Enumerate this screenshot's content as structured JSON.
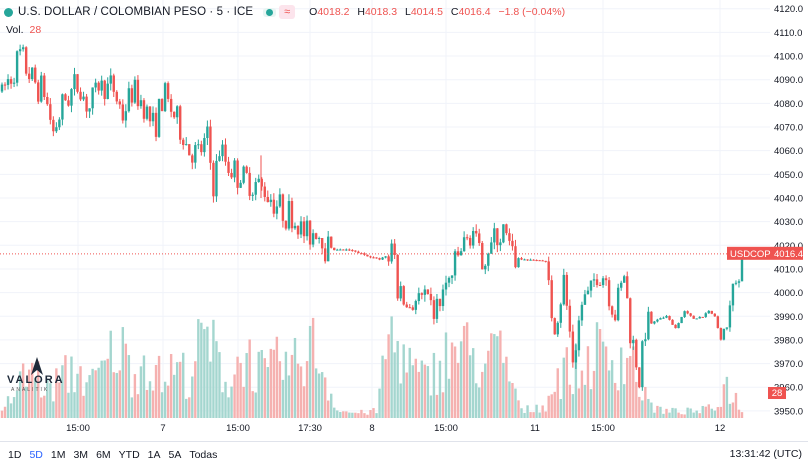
{
  "header": {
    "symbol_title": "U.S. DOLLAR / COLOMBIAN PESO · 5 · ICE",
    "o_label": "O",
    "o_value": "4018.2",
    "h_label": "H",
    "h_value": "4018.3",
    "l_label": "L",
    "l_value": "4014.5",
    "c_label": "C",
    "c_value": "4016.4",
    "change": "−1.8 (−0.04%)",
    "status_icon": "market-open-dot-icon",
    "compare_icon": "approx-swap-icon"
  },
  "volume_legend": {
    "label": "Vol.",
    "value": "28"
  },
  "logo": {
    "text": "VALORA",
    "subtext": "ANALITIK"
  },
  "price_tag": {
    "symbol": "USDCOP",
    "value": "4016.4"
  },
  "volume_tag": {
    "value": "28"
  },
  "timeframes": [
    {
      "label": "1D",
      "active": false
    },
    {
      "label": "5D",
      "active": true
    },
    {
      "label": "1M",
      "active": false
    },
    {
      "label": "3M",
      "active": false
    },
    {
      "label": "6M",
      "active": false
    },
    {
      "label": "YTD",
      "active": false
    },
    {
      "label": "1A",
      "active": false
    },
    {
      "label": "5A",
      "active": false
    },
    {
      "label": "Todas",
      "active": false
    }
  ],
  "clock": "13:31:42 (UTC)",
  "colors": {
    "up": "#26a69a",
    "down": "#ef5350",
    "vol_up": "#a4d6cf",
    "vol_down": "#f5b1b0"
  },
  "chart_data": {
    "type": "candlestick",
    "title": "U.S. DOLLAR / COLOMBIAN PESO · 5 · ICE",
    "ylim": [
      3947,
      4122
    ],
    "y_ticks": [
      "4120.0",
      "4110.0",
      "4100.0",
      "4090.0",
      "4080.0",
      "4070.0",
      "4060.0",
      "4050.0",
      "4040.0",
      "4030.0",
      "4020.0",
      "4010.0",
      "4000.0",
      "3990.0",
      "3980.0",
      "3970.0",
      "3960.0",
      "3950.0"
    ],
    "x_labels": [
      "15:00",
      "7",
      "15:00",
      "17:30",
      "8",
      "15:00",
      "11",
      "15:00",
      "12"
    ],
    "last_price": 4016.4,
    "path": [
      [
        0,
        4085
      ],
      [
        3,
        4092
      ],
      [
        6,
        4100
      ],
      [
        10,
        4090
      ],
      [
        14,
        4085
      ],
      [
        17,
        4068
      ],
      [
        21,
        4082
      ],
      [
        25,
        4088
      ],
      [
        29,
        4078
      ],
      [
        32,
        4088
      ],
      [
        37,
        4086
      ],
      [
        40,
        4075
      ],
      [
        43,
        4085
      ],
      [
        47,
        4080
      ],
      [
        50,
        4070
      ],
      [
        54,
        4083
      ],
      [
        57,
        4075
      ],
      [
        62,
        4060
      ],
      [
        65,
        4058
      ],
      [
        68,
        4065
      ],
      [
        70,
        4045
      ],
      [
        72,
        4060
      ],
      [
        76,
        4052
      ],
      [
        80,
        4048
      ],
      [
        84,
        4046
      ],
      [
        88,
        4042
      ],
      [
        92,
        4036
      ],
      [
        95,
        4033
      ],
      [
        98,
        4028
      ],
      [
        101,
        4024
      ],
      [
        104,
        4027
      ],
      [
        107,
        4020
      ],
      [
        110,
        4018
      ],
      [
        115,
        4018
      ],
      [
        120,
        4016
      ],
      [
        125,
        4014
      ],
      [
        128,
        4016
      ],
      [
        130,
        4015
      ],
      [
        131,
        4000
      ],
      [
        134,
        3994
      ],
      [
        137,
        3997
      ],
      [
        140,
        3996
      ],
      [
        143,
        3992
      ],
      [
        146,
        4000
      ],
      [
        149,
        4008
      ],
      [
        152,
        4018
      ],
      [
        156,
        4026
      ],
      [
        158,
        4014
      ],
      [
        162,
        4020
      ],
      [
        166,
        4025
      ],
      [
        169,
        4016
      ],
      [
        172,
        4014
      ],
      [
        177,
        4014
      ],
      [
        180,
        4013
      ],
      [
        181,
        4000
      ],
      [
        183,
        3985
      ],
      [
        186,
        4005
      ],
      [
        189,
        3972
      ],
      [
        192,
        3995
      ],
      [
        195,
        4000
      ],
      [
        197,
        4010
      ],
      [
        200,
        4006
      ],
      [
        203,
        3990
      ],
      [
        206,
        4008
      ],
      [
        208,
        3985
      ],
      [
        211,
        3963
      ],
      [
        213,
        3985
      ],
      [
        216,
        3988
      ],
      [
        220,
        3990
      ],
      [
        223,
        3985
      ],
      [
        226,
        3992
      ],
      [
        229,
        3989
      ],
      [
        232,
        3990
      ],
      [
        234,
        3992
      ],
      [
        236,
        3990
      ],
      [
        238,
        3980
      ],
      [
        241,
        3995
      ],
      [
        244,
        4010
      ],
      [
        245,
        4016.4
      ]
    ],
    "volume_peaks": [
      [
        0,
        3
      ],
      [
        5,
        18
      ],
      [
        10,
        30
      ],
      [
        15,
        16
      ],
      [
        20,
        24
      ],
      [
        25,
        28
      ],
      [
        30,
        20
      ],
      [
        35,
        32
      ],
      [
        38,
        45
      ],
      [
        43,
        28
      ],
      [
        48,
        35
      ],
      [
        53,
        22
      ],
      [
        57,
        30
      ],
      [
        62,
        25
      ],
      [
        67,
        48
      ],
      [
        71,
        36
      ],
      [
        75,
        20
      ],
      [
        80,
        38
      ],
      [
        84,
        30
      ],
      [
        88,
        24
      ],
      [
        92,
        34
      ],
      [
        96,
        28
      ],
      [
        100,
        40
      ],
      [
        104,
        42
      ],
      [
        108,
        18
      ],
      [
        112,
        4
      ],
      [
        118,
        3
      ],
      [
        124,
        4
      ],
      [
        128,
        50
      ],
      [
        132,
        40
      ],
      [
        136,
        28
      ],
      [
        140,
        22
      ],
      [
        144,
        30
      ],
      [
        148,
        38
      ],
      [
        152,
        42
      ],
      [
        156,
        36
      ],
      [
        160,
        30
      ],
      [
        164,
        40
      ],
      [
        168,
        26
      ],
      [
        172,
        4
      ],
      [
        180,
        8
      ],
      [
        184,
        24
      ],
      [
        188,
        30
      ],
      [
        192,
        26
      ],
      [
        196,
        40
      ],
      [
        200,
        34
      ],
      [
        204,
        36
      ],
      [
        208,
        38
      ],
      [
        212,
        14
      ],
      [
        216,
        6
      ],
      [
        220,
        4
      ],
      [
        230,
        4
      ],
      [
        236,
        6
      ],
      [
        240,
        20
      ],
      [
        245,
        5
      ]
    ],
    "volume_tag": 28
  }
}
